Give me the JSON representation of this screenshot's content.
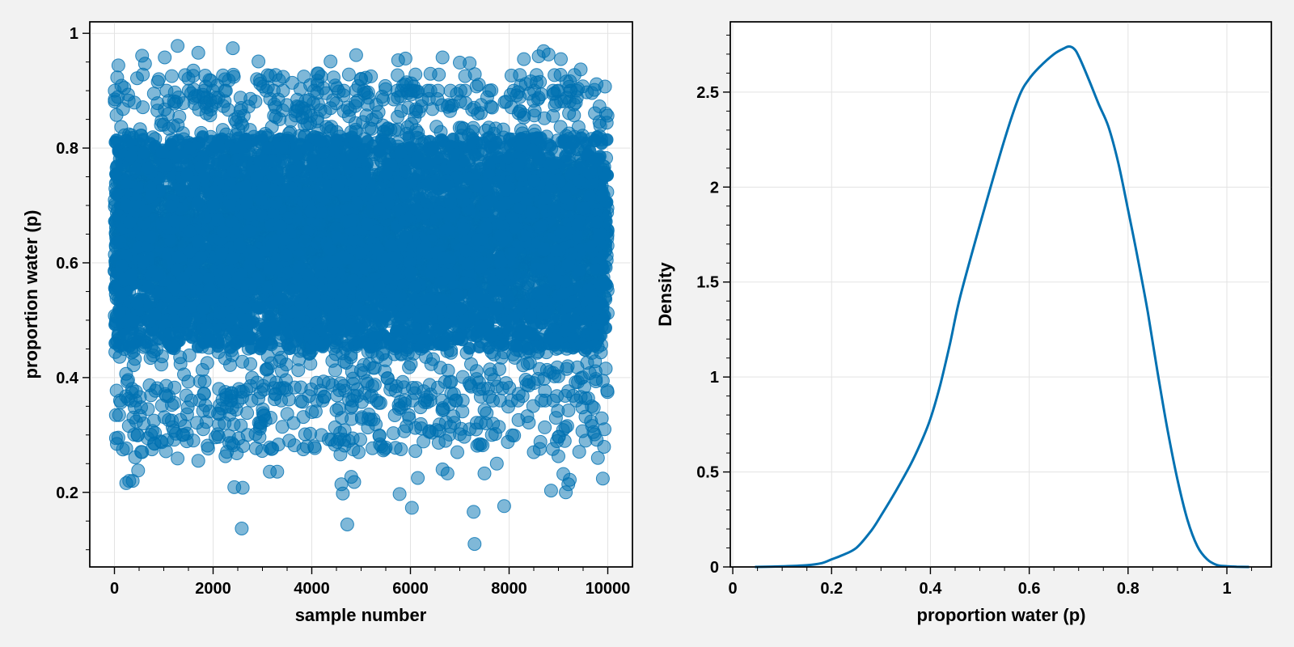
{
  "colors": {
    "series": "#0071b2",
    "background": "#f2f2f2",
    "plot_background": "#ffffff",
    "grid": "#e3e3e3"
  },
  "chart_data": [
    {
      "type": "scatter",
      "xlabel": "sample number",
      "ylabel": "proportion water (p)",
      "xlim": [
        -500,
        10500
      ],
      "ylim": [
        0.07,
        1.02
      ],
      "xticks": [
        0,
        2000,
        4000,
        6000,
        8000,
        10000
      ],
      "xtick_labels": [
        "0",
        "2000",
        "4000",
        "6000",
        "8000",
        "10000"
      ],
      "yticks": [
        0.2,
        0.4,
        0.6,
        0.8,
        1.0
      ],
      "ytick_labels": [
        "0.2",
        "0.4",
        "0.6",
        "0.8",
        "1"
      ],
      "grid": true,
      "marker_alpha": 0.5,
      "x_range": [
        0,
        10000
      ],
      "core_band": [
        0.4,
        0.85
      ],
      "outliers": [
        {
          "x": 80,
          "y": 0.944
        },
        {
          "x": 200,
          "y": 0.905
        },
        {
          "x": 240,
          "y": 0.216
        },
        {
          "x": 300,
          "y": 0.22
        },
        {
          "x": 370,
          "y": 0.22
        },
        {
          "x": 420,
          "y": 0.261
        },
        {
          "x": 480,
          "y": 0.238
        },
        {
          "x": 560,
          "y": 0.961
        },
        {
          "x": 560,
          "y": 0.27
        },
        {
          "x": 620,
          "y": 0.947
        },
        {
          "x": 680,
          "y": 0.345
        },
        {
          "x": 760,
          "y": 0.275
        },
        {
          "x": 800,
          "y": 0.895
        },
        {
          "x": 900,
          "y": 0.92
        },
        {
          "x": 1020,
          "y": 0.958
        },
        {
          "x": 1100,
          "y": 0.326
        },
        {
          "x": 1280,
          "y": 0.978
        },
        {
          "x": 1280,
          "y": 0.259
        },
        {
          "x": 1380,
          "y": 0.3
        },
        {
          "x": 1500,
          "y": 0.921
        },
        {
          "x": 1600,
          "y": 0.935
        },
        {
          "x": 1700,
          "y": 0.966
        },
        {
          "x": 1700,
          "y": 0.255
        },
        {
          "x": 1800,
          "y": 0.31
        },
        {
          "x": 2050,
          "y": 0.296
        },
        {
          "x": 2250,
          "y": 0.263
        },
        {
          "x": 2400,
          "y": 0.974
        },
        {
          "x": 2430,
          "y": 0.209
        },
        {
          "x": 2480,
          "y": 0.268
        },
        {
          "x": 2580,
          "y": 0.137
        },
        {
          "x": 2600,
          "y": 0.208
        },
        {
          "x": 2700,
          "y": 0.3
        },
        {
          "x": 2920,
          "y": 0.951
        },
        {
          "x": 3150,
          "y": 0.236
        },
        {
          "x": 3200,
          "y": 0.276
        },
        {
          "x": 3300,
          "y": 0.236
        },
        {
          "x": 3650,
          "y": 0.282
        },
        {
          "x": 3830,
          "y": 0.275
        },
        {
          "x": 4050,
          "y": 0.28
        },
        {
          "x": 4380,
          "y": 0.951
        },
        {
          "x": 4500,
          "y": 0.343
        },
        {
          "x": 4580,
          "y": 0.266
        },
        {
          "x": 4600,
          "y": 0.214
        },
        {
          "x": 4630,
          "y": 0.198
        },
        {
          "x": 4720,
          "y": 0.144
        },
        {
          "x": 4800,
          "y": 0.227
        },
        {
          "x": 4860,
          "y": 0.218
        },
        {
          "x": 4900,
          "y": 0.962
        },
        {
          "x": 4950,
          "y": 0.27
        },
        {
          "x": 5200,
          "y": 0.925
        },
        {
          "x": 5500,
          "y": 0.278
        },
        {
          "x": 5750,
          "y": 0.953
        },
        {
          "x": 5780,
          "y": 0.197
        },
        {
          "x": 5900,
          "y": 0.956
        },
        {
          "x": 6030,
          "y": 0.173
        },
        {
          "x": 6100,
          "y": 0.272
        },
        {
          "x": 6150,
          "y": 0.225
        },
        {
          "x": 6650,
          "y": 0.958
        },
        {
          "x": 6650,
          "y": 0.24
        },
        {
          "x": 6750,
          "y": 0.233
        },
        {
          "x": 6950,
          "y": 0.27
        },
        {
          "x": 7000,
          "y": 0.949
        },
        {
          "x": 7200,
          "y": 0.948
        },
        {
          "x": 7280,
          "y": 0.166
        },
        {
          "x": 7300,
          "y": 0.11
        },
        {
          "x": 7500,
          "y": 0.233
        },
        {
          "x": 7650,
          "y": 0.3
        },
        {
          "x": 7750,
          "y": 0.25
        },
        {
          "x": 7900,
          "y": 0.176
        },
        {
          "x": 8300,
          "y": 0.955
        },
        {
          "x": 8500,
          "y": 0.27
        },
        {
          "x": 8600,
          "y": 0.96
        },
        {
          "x": 8700,
          "y": 0.969
        },
        {
          "x": 8800,
          "y": 0.963
        },
        {
          "x": 8850,
          "y": 0.203
        },
        {
          "x": 9000,
          "y": 0.263
        },
        {
          "x": 9050,
          "y": 0.955
        },
        {
          "x": 9100,
          "y": 0.232
        },
        {
          "x": 9150,
          "y": 0.2
        },
        {
          "x": 9200,
          "y": 0.214
        },
        {
          "x": 9230,
          "y": 0.222
        },
        {
          "x": 9450,
          "y": 0.937
        },
        {
          "x": 9550,
          "y": 0.29
        },
        {
          "x": 9800,
          "y": 0.26
        },
        {
          "x": 9900,
          "y": 0.224
        }
      ]
    },
    {
      "type": "line",
      "xlabel": "proportion water (p)",
      "ylabel": "Density",
      "xlim": [
        -0.005,
        1.09
      ],
      "ylim": [
        0,
        2.87
      ],
      "xticks": [
        0,
        0.2,
        0.4,
        0.6,
        0.8,
        1.0
      ],
      "xtick_labels": [
        "0",
        "0.2",
        "0.4",
        "0.6",
        "0.8",
        "1"
      ],
      "yticks": [
        0,
        0.5,
        1,
        1.5,
        2,
        2.5
      ],
      "ytick_labels": [
        "0",
        "0.5",
        "1",
        "1.5",
        "2",
        "2.5"
      ],
      "grid": true,
      "x": [
        0.045,
        0.1,
        0.15,
        0.18,
        0.2,
        0.22,
        0.25,
        0.28,
        0.3,
        0.33,
        0.36,
        0.38,
        0.4,
        0.42,
        0.44,
        0.46,
        0.5,
        0.55,
        0.58,
        0.6,
        0.62,
        0.65,
        0.67,
        0.68,
        0.69,
        0.7,
        0.72,
        0.74,
        0.76,
        0.78,
        0.8,
        0.82,
        0.84,
        0.86,
        0.88,
        0.9,
        0.92,
        0.94,
        0.96,
        0.98,
        1.0,
        1.02,
        1.045
      ],
      "y": [
        0.0,
        0.003,
        0.009,
        0.02,
        0.04,
        0.06,
        0.1,
        0.19,
        0.27,
        0.4,
        0.54,
        0.65,
        0.78,
        0.96,
        1.18,
        1.42,
        1.8,
        2.25,
        2.48,
        2.57,
        2.63,
        2.7,
        2.73,
        2.74,
        2.73,
        2.69,
        2.57,
        2.44,
        2.32,
        2.13,
        1.88,
        1.62,
        1.34,
        1.02,
        0.72,
        0.46,
        0.25,
        0.11,
        0.04,
        0.01,
        0.004,
        0.001,
        0.0
      ]
    }
  ]
}
